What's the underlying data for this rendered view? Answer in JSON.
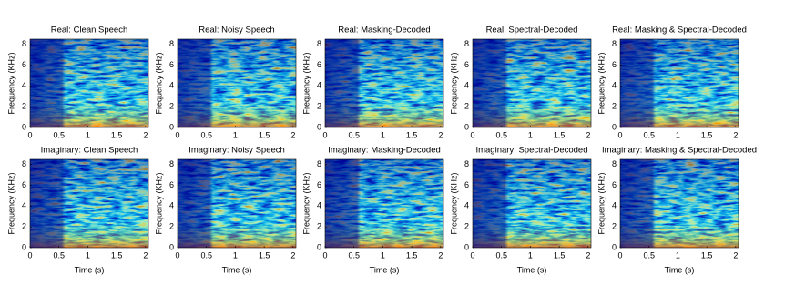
{
  "chart_data": [
    {
      "type": "spectrogram",
      "title": "Real: Clean Speech",
      "ylabel": "Frequency (KHz)",
      "xlim": [
        0,
        2.05
      ],
      "ylim": [
        0,
        8.5
      ],
      "xticks": [
        0,
        0.5,
        1,
        1.5,
        2
      ],
      "yticks": [
        0,
        2,
        4,
        6,
        8
      ]
    },
    {
      "type": "spectrogram",
      "title": "Real: Noisy Speech",
      "ylabel": "Frequency (KHz)",
      "xlim": [
        0,
        2.05
      ],
      "ylim": [
        0,
        8.5
      ],
      "xticks": [
        0,
        0.5,
        1,
        1.5,
        2
      ],
      "yticks": [
        0,
        2,
        4,
        6,
        8
      ]
    },
    {
      "type": "spectrogram",
      "title": "Real: Masking-Decoded",
      "ylabel": "Frequency (KHz)",
      "xlim": [
        0,
        2.05
      ],
      "ylim": [
        0,
        8.5
      ],
      "xticks": [
        0,
        0.5,
        1,
        1.5,
        2
      ],
      "yticks": [
        0,
        2,
        4,
        6,
        8
      ]
    },
    {
      "type": "spectrogram",
      "title": "Real: Spectral-Decoded",
      "ylabel": "Frequency (KHz)",
      "xlim": [
        0,
        2.05
      ],
      "ylim": [
        0,
        8.5
      ],
      "xticks": [
        0,
        0.5,
        1,
        1.5,
        2
      ],
      "yticks": [
        0,
        2,
        4,
        6,
        8
      ]
    },
    {
      "type": "spectrogram",
      "title": "Real: Masking & Spectral-Decoded",
      "ylabel": "Frequency (KHz)",
      "xlim": [
        0,
        2.05
      ],
      "ylim": [
        0,
        8.5
      ],
      "xticks": [
        0,
        0.5,
        1,
        1.5,
        2
      ],
      "yticks": [
        0,
        2,
        4,
        6,
        8
      ]
    },
    {
      "type": "spectrogram",
      "title": "Imaginary: Clean Speech",
      "ylabel": "Frequency (KHz)",
      "xlabel": "Time (s)",
      "xlim": [
        0,
        2.05
      ],
      "ylim": [
        0,
        8.5
      ],
      "xticks": [
        0,
        0.5,
        1,
        1.5,
        2
      ],
      "yticks": [
        0,
        2,
        4,
        6,
        8
      ]
    },
    {
      "type": "spectrogram",
      "title": "Imaginary: Noisy Speech",
      "ylabel": "Frequency (KHz)",
      "xlabel": "Time (s)",
      "xlim": [
        0,
        2.05
      ],
      "ylim": [
        0,
        8.5
      ],
      "xticks": [
        0,
        0.5,
        1,
        1.5,
        2
      ],
      "yticks": [
        0,
        2,
        4,
        6,
        8
      ]
    },
    {
      "type": "spectrogram",
      "title": "Imaginary: Masking-Decoded",
      "ylabel": "Frequency (KHz)",
      "xlabel": "Time (s)",
      "xlim": [
        0,
        2.05
      ],
      "ylim": [
        0,
        8.5
      ],
      "xticks": [
        0,
        0.5,
        1,
        1.5,
        2
      ],
      "yticks": [
        0,
        2,
        4,
        6,
        8
      ]
    },
    {
      "type": "spectrogram",
      "title": "Imaginary: Spectral-Decoded",
      "ylabel": "Frequency (KHz)",
      "xlabel": "Time (s)",
      "xlim": [
        0,
        2.05
      ],
      "ylim": [
        0,
        8.5
      ],
      "xticks": [
        0,
        0.5,
        1,
        1.5,
        2
      ],
      "yticks": [
        0,
        2,
        4,
        6,
        8
      ]
    },
    {
      "type": "spectrogram",
      "title": "Imaginary: Masking & Spectral-Decoded",
      "ylabel": "Frequency (KHz)",
      "xlabel": "Time (s)",
      "xlim": [
        0,
        2.05
      ],
      "ylim": [
        0,
        8.5
      ],
      "xticks": [
        0,
        0.5,
        1,
        1.5,
        2
      ],
      "yticks": [
        0,
        2,
        4,
        6,
        8
      ]
    }
  ]
}
